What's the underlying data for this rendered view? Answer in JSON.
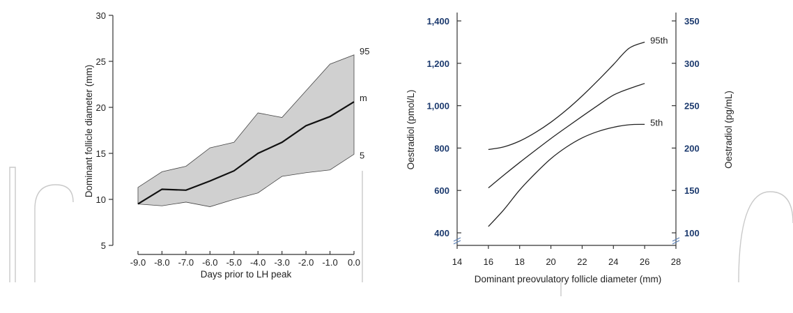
{
  "chart_data": [
    {
      "type": "area",
      "xlabel": "Days prior to LH peak",
      "ylabel": "Dominant follicle diameter (mm)",
      "xlim": [
        -9.0,
        0.0
      ],
      "ylim": [
        5,
        30
      ],
      "x_ticks": [
        "-9.0",
        "-8.0",
        "-7.0",
        "-6.0",
        "-5.0",
        "-4.0",
        "-3.0",
        "-2.0",
        "-1.0",
        "0.0"
      ],
      "y_ticks": [
        "5",
        "10",
        "15",
        "20",
        "25",
        "30"
      ],
      "x": [
        -9.0,
        -8.0,
        -7.0,
        -6.0,
        -5.0,
        -4.0,
        -3.0,
        -2.0,
        -1.0,
        0.0
      ],
      "band_upper_label": "95",
      "band_upper": [
        11.3,
        13.0,
        13.6,
        15.6,
        16.2,
        19.4,
        18.9,
        21.8,
        24.7,
        25.7
      ],
      "band_lower_label": "5",
      "band_lower": [
        9.5,
        9.3,
        9.7,
        9.2,
        10.0,
        10.7,
        12.5,
        12.9,
        13.2,
        14.9
      ],
      "series": [
        {
          "name": "m",
          "values": [
            9.5,
            11.1,
            11.0,
            12.0,
            13.1,
            15.0,
            16.2,
            18.0,
            19.0,
            20.6
          ]
        }
      ],
      "grid": false,
      "fill_color": "#d0d0d0",
      "line_color": "#111111"
    },
    {
      "type": "line",
      "xlabel": "Dominant preovulatory follicle diameter (mm)",
      "ylabel": "Oestradiol (pmol/L)",
      "ylabel_right": "Oestradiol (pg/mL)",
      "xlim": [
        14,
        28
      ],
      "ylim": [
        400,
        1400
      ],
      "ylim_right": [
        100,
        350
      ],
      "x_ticks": [
        "14",
        "16",
        "18",
        "20",
        "22",
        "24",
        "26",
        "28"
      ],
      "y_ticks": [
        "400",
        "600",
        "800",
        "1,000",
        "1,200",
        "1,400"
      ],
      "y_ticks_right": [
        "100",
        "150",
        "200",
        "250",
        "300",
        "350"
      ],
      "x": [
        16,
        17,
        18,
        19,
        20,
        21,
        22,
        23,
        24,
        25,
        26
      ],
      "series": [
        {
          "name": "95th",
          "values": [
            793,
            806,
            833,
            873,
            922,
            980,
            1046,
            1118,
            1194,
            1271,
            1300
          ]
        },
        {
          "name": "",
          "values": [
            612,
            673,
            732,
            789,
            845,
            898,
            950,
            1001,
            1050,
            1080,
            1105
          ]
        },
        {
          "name": "5th",
          "values": [
            430,
            510,
            602,
            680,
            750,
            805,
            848,
            878,
            898,
            910,
            912
          ]
        }
      ],
      "grid": false,
      "tick_color_axes": "#1c3a6e",
      "line_color": "#222222"
    }
  ]
}
